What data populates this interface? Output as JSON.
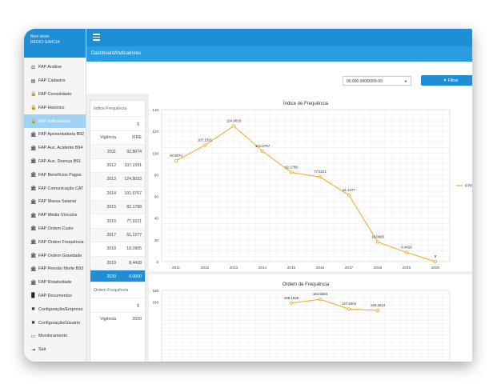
{
  "user": {
    "line1": "Bem vindo",
    "line2": "REGIO GARCIA"
  },
  "sidebar": {
    "items": [
      {
        "label": "FAP Análise",
        "icon": "scale-icon"
      },
      {
        "label": "FAP Cadastro",
        "icon": "list-icon"
      },
      {
        "label": "FAP Consolidado",
        "icon": "lock-icon"
      },
      {
        "label": "FAP Histórico",
        "icon": "lock-icon"
      },
      {
        "label": "FAP Indicadores",
        "icon": "lock-icon"
      },
      {
        "label": "FAP Aposentadoria B92",
        "icon": "bank-icon"
      },
      {
        "label": "FAP Aux. Acidente B94",
        "icon": "bank-icon"
      },
      {
        "label": "FAP Aux. Doença B91",
        "icon": "bank-icon"
      },
      {
        "label": "FAP Benefícios Pagos",
        "icon": "bank-icon"
      },
      {
        "label": "FAP Comunicação CAT",
        "icon": "bank-icon"
      },
      {
        "label": "FAP Massa Salarial",
        "icon": "bank-icon"
      },
      {
        "label": "FAP Média Vínculos",
        "icon": "bank-icon"
      },
      {
        "label": "FAP Ordem Custo",
        "icon": "bank-icon"
      },
      {
        "label": "FAP Ordem Frequência",
        "icon": "bank-icon"
      },
      {
        "label": "FAP Ordem Gravidade",
        "icon": "bank-icon"
      },
      {
        "label": "FAP Pensão Morte B93",
        "icon": "bank-icon"
      },
      {
        "label": "FAP Rotatividade",
        "icon": "bank-icon"
      },
      {
        "label": "FAP Documentos",
        "icon": "document-icon"
      },
      {
        "label": "Configuração/Empresa",
        "icon": "wrench-icon"
      },
      {
        "label": "Configuração/Usuário",
        "icon": "wrench-icon"
      },
      {
        "label": "Monitoramento",
        "icon": "monitor-icon"
      },
      {
        "label": "Sair",
        "icon": "logout-icon"
      }
    ],
    "active_index": 4
  },
  "header": {
    "breadcrumb": "Dashboard/Indicadores"
  },
  "filter": {
    "cnpj_value": "00.000.000/0000-00",
    "button_label": "Filtrar"
  },
  "indice_table": {
    "title": "Índice Frequência",
    "columns": [
      "Vigência",
      "IFRE"
    ],
    "rows": [
      [
        "2011",
        "92,8074"
      ],
      [
        "2012",
        "107,1591"
      ],
      [
        "2013",
        "124,9033"
      ],
      [
        "2014",
        "101,6767"
      ],
      [
        "2015",
        "82,1788"
      ],
      [
        "2016",
        "77,9221"
      ],
      [
        "2017",
        "61,1277"
      ],
      [
        "2018",
        "18,0905"
      ],
      [
        "2019",
        "8,4428"
      ],
      [
        "2020",
        "0,0000"
      ]
    ],
    "selected_row": 9
  },
  "ordem_table": {
    "title": "Ordem Frequência",
    "first_cells": [
      "Vigência",
      "2020"
    ]
  },
  "chart_data": [
    {
      "type": "line",
      "title": "Índice de Frequência",
      "x": [
        "2011",
        "2012",
        "2013",
        "2014",
        "2015",
        "2016",
        "2017",
        "2018",
        "2019",
        "2020"
      ],
      "series": [
        {
          "name": "IFRE",
          "values": [
            92.8074,
            107.1591,
            124.9033,
            101.6767,
            82.1788,
            77.9221,
            61.1277,
            18.0905,
            8.4428,
            0
          ]
        }
      ],
      "point_labels": [
        "92.8074",
        "107.1591",
        "124.9033",
        "101.6767",
        "82.1788",
        "77.9221",
        "61.1277",
        "18.0905",
        "8.4428",
        "0"
      ],
      "ylim": [
        0,
        140
      ],
      "yticks": [
        "0",
        "20",
        "40",
        "60",
        "80",
        "100",
        "120",
        "140"
      ],
      "grid": true,
      "legend": "right",
      "color": "#f5a623"
    },
    {
      "type": "line",
      "title": "Ordem de Frequência",
      "x": [
        "2011",
        "2012",
        "2013",
        "2014",
        "2015",
        "2016",
        "2017",
        "2018",
        "2019",
        "2020"
      ],
      "series": [
        {
          "name": "",
          "values": [
            null,
            null,
            null,
            null,
            158.1526,
            164.5084,
            147.8404,
            145.2613,
            null,
            null
          ]
        }
      ],
      "point_labels": [
        "",
        "",
        "",
        "",
        "158.1526",
        "164.5084",
        "147.8404",
        "145.2613",
        "",
        ""
      ],
      "ylim": [
        0,
        180
      ],
      "yticks": [
        "180",
        "160"
      ],
      "grid": true,
      "color": "#f5a623"
    }
  ]
}
